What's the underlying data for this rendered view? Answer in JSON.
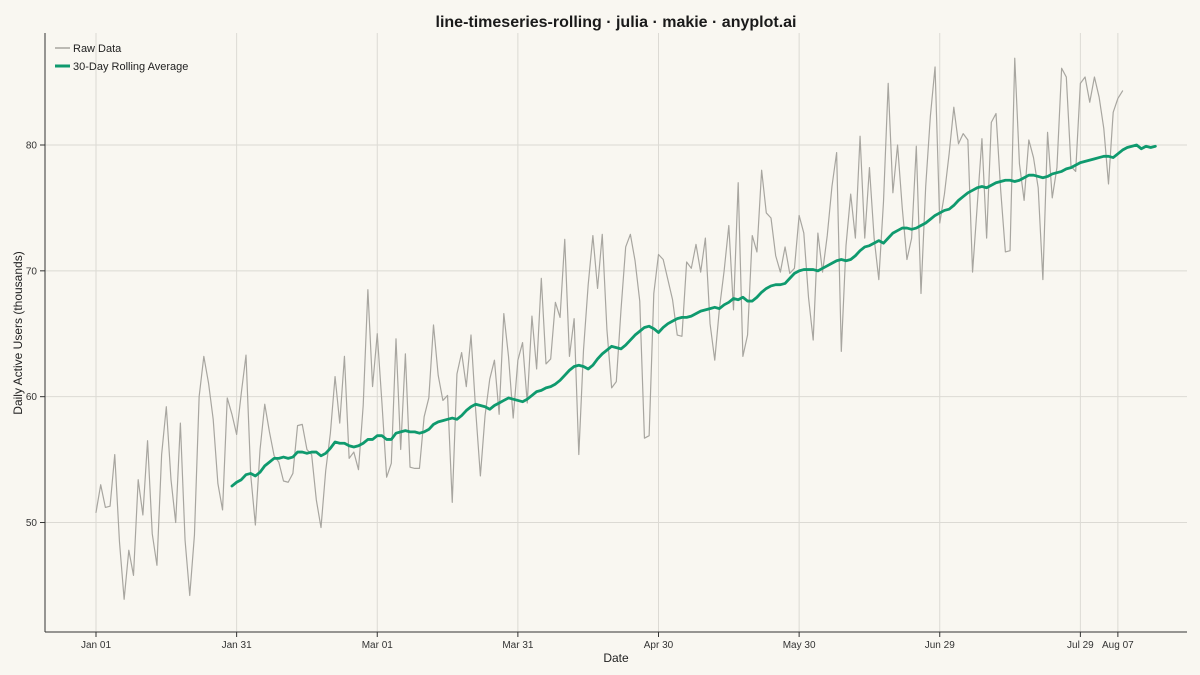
{
  "chart_data": {
    "type": "line",
    "title": "line-timeseries-rolling · julia · makie · anyplot.ai",
    "xlabel": "Date",
    "ylabel": "Daily Active Users (thousands)",
    "x_tick_labels": [
      "Jan 01",
      "Jan 31",
      "Mar 01",
      "Mar 31",
      "Apr 30",
      "May 30",
      "Jun 29",
      "Jul 29",
      "Aug 07"
    ],
    "y_ticks": [
      50,
      60,
      70,
      80
    ],
    "ylim": [
      41.3,
      88.9
    ],
    "grid": true,
    "legend_position": "top-left",
    "x_start": "Jan 01",
    "x_end": "Aug 07",
    "series": [
      {
        "name": "Raw Data",
        "color": "#A8A6A0",
        "values": [
          50.8,
          53.0,
          51.2,
          51.3,
          55.4,
          48.5,
          43.9,
          47.8,
          45.8,
          53.4,
          50.6,
          56.5,
          49.1,
          46.6,
          55.4,
          59.2,
          53.4,
          50.0,
          57.9,
          48.6,
          44.2,
          49.0,
          60.0,
          63.2,
          61.1,
          58.2,
          53.1,
          51.0,
          59.9,
          58.6,
          57.0,
          60.3,
          63.3,
          53.8,
          49.8,
          55.8,
          59.4,
          57.2,
          55.3,
          54.8,
          53.3,
          53.2,
          53.9,
          57.7,
          57.8,
          55.8,
          55.4,
          51.8,
          49.6,
          54.1,
          57.1,
          61.6,
          57.9,
          63.2,
          55.1,
          55.6,
          54.2,
          59.3,
          68.5,
          60.8,
          65.0,
          59.5,
          53.6,
          54.7,
          64.6,
          55.8,
          63.4,
          54.4,
          54.3,
          54.3,
          58.4,
          59.9,
          65.7,
          61.7,
          59.7,
          60.1,
          51.6,
          61.8,
          63.5,
          60.8,
          64.9,
          58.9,
          53.7,
          58.5,
          61.4,
          62.9,
          58.6,
          66.6,
          63.2,
          58.3,
          62.9,
          64.3,
          59.5,
          66.4,
          62.2,
          69.4,
          62.6,
          63.0,
          67.5,
          66.3,
          72.5,
          63.2,
          66.2,
          55.4,
          63.7,
          68.9,
          72.8,
          68.6,
          72.9,
          65.3,
          60.7,
          61.2,
          66.9,
          71.9,
          72.9,
          70.8,
          67.6,
          56.7,
          56.9,
          68.2,
          71.3,
          70.9,
          69.3,
          67.7,
          64.9,
          64.8,
          70.7,
          70.2,
          72.1,
          69.9,
          72.6,
          65.8,
          62.9,
          67.0,
          70.0,
          73.6,
          66.9,
          77.0,
          63.2,
          64.9,
          72.8,
          71.5,
          78.0,
          74.6,
          74.2,
          71.2,
          69.9,
          71.9,
          69.8,
          70.2,
          74.4,
          73.0,
          67.9,
          64.5,
          73.0,
          69.9,
          72.8,
          76.7,
          79.4,
          63.6,
          72.0,
          76.1,
          72.6,
          80.7,
          72.6,
          78.2,
          72.6,
          69.3,
          75.5,
          84.9,
          76.2,
          80.0,
          75.0,
          70.9,
          72.6,
          79.9,
          68.2,
          76.7,
          82.3,
          86.2,
          73.8,
          76.1,
          79.3,
          83.0,
          80.1,
          80.9,
          80.4,
          69.9,
          75.2,
          80.5,
          72.6,
          81.8,
          82.5,
          76.4,
          71.5,
          71.6,
          86.9,
          78.5,
          75.6,
          80.4,
          79.0,
          76.6,
          69.3,
          81.0,
          75.8,
          78.2,
          86.1,
          85.4,
          78.3,
          77.9,
          84.9,
          85.4,
          83.4,
          85.4,
          83.8,
          81.3,
          76.9,
          82.6,
          83.7,
          84.3
        ]
      },
      {
        "name": "30-Day Rolling Average",
        "color": "#0F9A6E",
        "start_day": 29,
        "values": [
          52.9,
          53.2,
          53.4,
          53.8,
          53.9,
          53.7,
          54.0,
          54.5,
          54.8,
          55.1,
          55.1,
          55.2,
          55.1,
          55.2,
          55.6,
          55.6,
          55.5,
          55.6,
          55.6,
          55.3,
          55.5,
          55.9,
          56.4,
          56.3,
          56.3,
          56.1,
          56.0,
          56.1,
          56.3,
          56.6,
          56.6,
          56.9,
          56.9,
          56.6,
          56.6,
          57.1,
          57.2,
          57.3,
          57.2,
          57.2,
          57.1,
          57.2,
          57.4,
          57.8,
          58.0,
          58.1,
          58.2,
          58.3,
          58.2,
          58.5,
          58.9,
          59.2,
          59.4,
          59.3,
          59.2,
          59.0,
          59.3,
          59.5,
          59.7,
          59.9,
          59.8,
          59.7,
          59.6,
          59.8,
          60.1,
          60.4,
          60.5,
          60.7,
          60.8,
          61.0,
          61.3,
          61.7,
          62.1,
          62.4,
          62.5,
          62.4,
          62.2,
          62.5,
          63.0,
          63.4,
          63.7,
          64.0,
          63.9,
          63.8,
          64.1,
          64.5,
          64.9,
          65.2,
          65.5,
          65.6,
          65.4,
          65.1,
          65.5,
          65.8,
          66.0,
          66.2,
          66.3,
          66.3,
          66.4,
          66.6,
          66.8,
          66.9,
          67.0,
          67.1,
          67.0,
          67.3,
          67.5,
          67.8,
          67.7,
          67.9,
          67.6,
          67.6,
          67.9,
          68.3,
          68.6,
          68.8,
          68.9,
          68.9,
          69.0,
          69.4,
          69.8,
          70.0,
          70.1,
          70.1,
          70.1,
          70.0,
          70.2,
          70.4,
          70.6,
          70.8,
          70.9,
          70.8,
          70.9,
          71.2,
          71.6,
          71.9,
          72.0,
          72.2,
          72.4,
          72.2,
          72.6,
          73.0,
          73.2,
          73.4,
          73.4,
          73.3,
          73.4,
          73.6,
          73.8,
          74.1,
          74.4,
          74.6,
          74.8,
          74.9,
          75.2,
          75.6,
          75.9,
          76.2,
          76.4,
          76.6,
          76.7,
          76.6,
          76.8,
          77.0,
          77.1,
          77.2,
          77.2,
          77.1,
          77.2,
          77.4,
          77.6,
          77.6,
          77.5,
          77.4,
          77.5,
          77.7,
          77.8,
          77.9,
          78.1,
          78.2,
          78.4,
          78.6,
          78.7,
          78.8,
          78.9,
          79.0,
          79.1,
          79.1,
          79.0,
          79.3,
          79.6,
          79.8,
          79.9,
          80.0,
          79.7,
          79.9,
          79.8,
          79.9
        ]
      }
    ]
  }
}
